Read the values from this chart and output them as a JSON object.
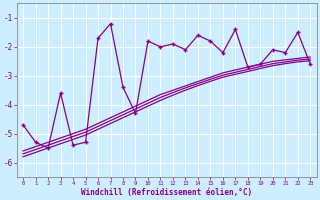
{
  "x": [
    0,
    1,
    2,
    3,
    4,
    5,
    6,
    7,
    8,
    9,
    10,
    11,
    12,
    13,
    14,
    15,
    16,
    17,
    18,
    19,
    20,
    21,
    22,
    23
  ],
  "y_main": [
    -4.7,
    -5.3,
    -5.5,
    -3.6,
    -5.4,
    -5.3,
    -1.7,
    -1.2,
    -3.4,
    -4.3,
    -1.8,
    -2.0,
    -1.9,
    -2.1,
    -1.6,
    -1.8,
    -2.2,
    -1.4,
    -2.7,
    -2.6,
    -2.1,
    -2.2,
    -1.5,
    -2.6
  ],
  "y_line1": [
    -5.6,
    -5.45,
    -5.3,
    -5.15,
    -5.0,
    -4.85,
    -4.65,
    -4.45,
    -4.25,
    -4.05,
    -3.85,
    -3.65,
    -3.5,
    -3.35,
    -3.2,
    -3.05,
    -2.9,
    -2.8,
    -2.7,
    -2.6,
    -2.5,
    -2.45,
    -2.4,
    -2.35
  ],
  "y_line2": [
    -5.7,
    -5.55,
    -5.4,
    -5.25,
    -5.1,
    -4.95,
    -4.75,
    -4.55,
    -4.35,
    -4.15,
    -3.95,
    -3.75,
    -3.58,
    -3.42,
    -3.27,
    -3.12,
    -2.98,
    -2.88,
    -2.78,
    -2.68,
    -2.58,
    -2.52,
    -2.46,
    -2.42
  ],
  "y_line3": [
    -5.8,
    -5.65,
    -5.5,
    -5.35,
    -5.2,
    -5.05,
    -4.85,
    -4.65,
    -4.45,
    -4.25,
    -4.05,
    -3.85,
    -3.67,
    -3.5,
    -3.34,
    -3.19,
    -3.05,
    -2.95,
    -2.85,
    -2.75,
    -2.65,
    -2.58,
    -2.52,
    -2.48
  ],
  "color": "#880088",
  "bg_color": "#cceeff",
  "xlabel": "Windchill (Refroidissement éolien,°C)",
  "ylim": [
    -6.5,
    -0.5
  ],
  "xlim": [
    -0.5,
    23.5
  ],
  "yticks": [
    -6,
    -5,
    -4,
    -3,
    -2,
    -1
  ],
  "xticks": [
    0,
    1,
    2,
    3,
    4,
    5,
    6,
    7,
    8,
    9,
    10,
    11,
    12,
    13,
    14,
    15,
    16,
    17,
    18,
    19,
    20,
    21,
    22,
    23
  ],
  "xtick_labels": [
    "0",
    "1",
    "2",
    "3",
    "4",
    "5",
    "6",
    "7",
    "8",
    "9",
    "10",
    "11",
    "12",
    "13",
    "14",
    "15",
    "16",
    "17",
    "18",
    "19",
    "20",
    "21",
    "22",
    "23"
  ]
}
